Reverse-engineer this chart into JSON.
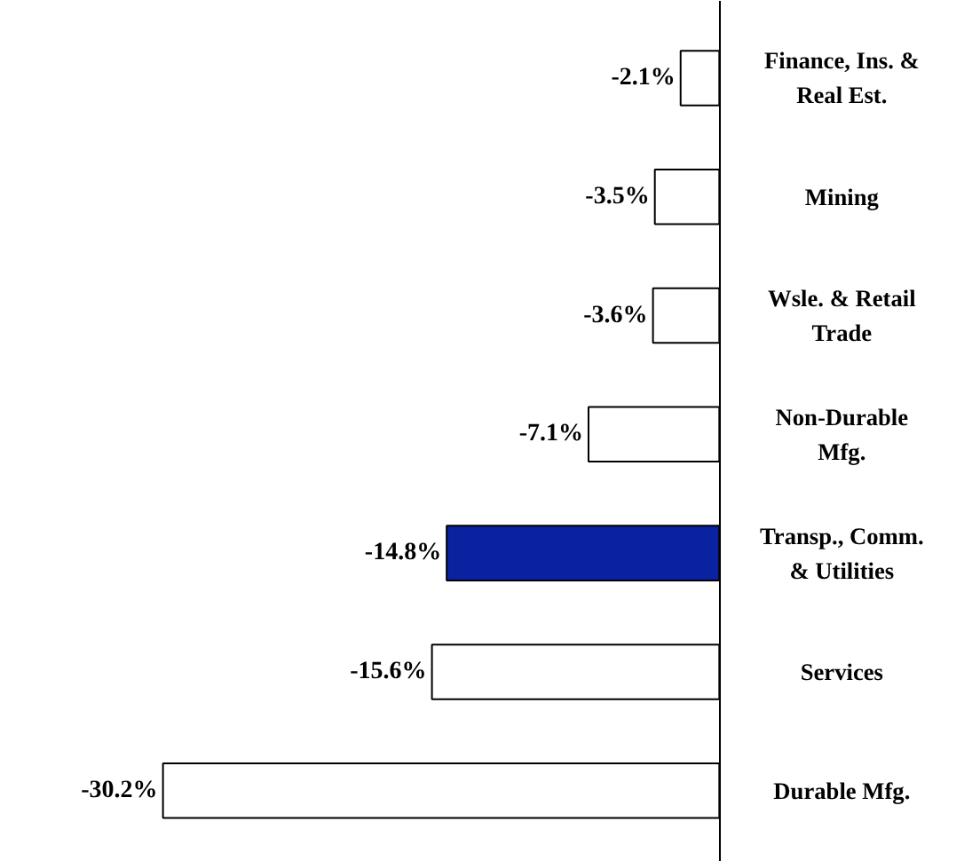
{
  "chart_data": {
    "type": "bar",
    "orientation": "horizontal",
    "categories": [
      "Finance, Ins. &\nReal Est.",
      "Mining",
      "Wsle. & Retail\nTrade",
      "Non-Durable\nMfg.",
      "Transp., Comm.\n& Utilities",
      "Services",
      "Durable Mfg."
    ],
    "values": [
      -2.1,
      -3.5,
      -3.6,
      -7.1,
      -14.8,
      -15.6,
      -30.2
    ],
    "colors": [
      "#ffffff",
      "#ffffff",
      "#ffffff",
      "#ffffff",
      "#0a22a0",
      "#ffffff",
      "#ffffff"
    ],
    "value_labels": [
      "-2.1%",
      "-3.5%",
      "-3.6%",
      "-7.1%",
      "-14.8%",
      "-15.6%",
      "-30.2%"
    ],
    "xlim": [
      -39,
      14.2
    ],
    "grid": false
  }
}
